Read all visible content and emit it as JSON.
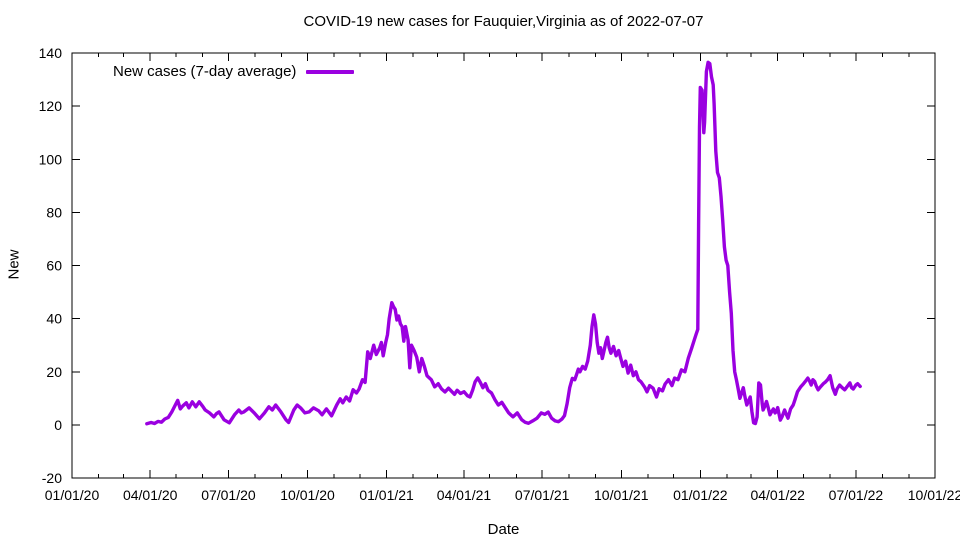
{
  "title": "COVID-19 new cases for Fauquier,Virginia as of 2022-07-07",
  "legend": {
    "label": "New cases (7-day average)"
  },
  "axes": {
    "x_label": "Date",
    "y_label": "New"
  },
  "chart_data": {
    "type": "line",
    "title": "COVID-19 new cases for Fauquier,Virginia as of 2022-07-07",
    "xlabel": "Date",
    "ylabel": "New",
    "grid": false,
    "legend_position": "top-left-inside",
    "line_color": "#9A00E0",
    "x_range": [
      "2020-01-01",
      "2022-10-01"
    ],
    "ylim": [
      -20,
      140
    ],
    "y_ticks": [
      -20,
      0,
      20,
      40,
      60,
      80,
      100,
      120,
      140
    ],
    "x_ticks": [
      [
        "2020-01-01",
        "01/01/20"
      ],
      [
        "2020-04-01",
        "04/01/20"
      ],
      [
        "2020-07-01",
        "07/01/20"
      ],
      [
        "2020-10-01",
        "10/01/20"
      ],
      [
        "2021-01-01",
        "01/01/21"
      ],
      [
        "2021-04-01",
        "04/01/21"
      ],
      [
        "2021-07-01",
        "07/01/21"
      ],
      [
        "2021-10-01",
        "10/01/21"
      ],
      [
        "2022-01-01",
        "01/01/22"
      ],
      [
        "2022-04-01",
        "04/01/22"
      ],
      [
        "2022-07-01",
        "07/01/22"
      ],
      [
        "2022-10-01",
        "10/01/22"
      ]
    ],
    "minor_x_ticks": "monthly",
    "series": [
      {
        "name": "New cases (7-day average)",
        "points": [
          [
            "2020-03-28",
            0.4
          ],
          [
            "2020-04-02",
            0.9
          ],
          [
            "2020-04-06",
            0.5
          ],
          [
            "2020-04-10",
            1.3
          ],
          [
            "2020-04-14",
            1.0
          ],
          [
            "2020-04-18",
            2.2
          ],
          [
            "2020-04-22",
            2.8
          ],
          [
            "2020-04-26",
            4.8
          ],
          [
            "2020-05-01",
            8.0
          ],
          [
            "2020-05-03",
            9.2
          ],
          [
            "2020-05-06",
            6.0
          ],
          [
            "2020-05-09",
            7.2
          ],
          [
            "2020-05-13",
            8.3
          ],
          [
            "2020-05-16",
            6.4
          ],
          [
            "2020-05-20",
            8.7
          ],
          [
            "2020-05-24",
            6.8
          ],
          [
            "2020-05-28",
            8.7
          ],
          [
            "2020-06-01",
            7.0
          ],
          [
            "2020-06-04",
            5.6
          ],
          [
            "2020-06-09",
            4.5
          ],
          [
            "2020-06-14",
            3.0
          ],
          [
            "2020-06-17",
            4.2
          ],
          [
            "2020-06-20",
            4.9
          ],
          [
            "2020-06-26",
            1.9
          ],
          [
            "2020-07-02",
            0.8
          ],
          [
            "2020-07-08",
            3.8
          ],
          [
            "2020-07-13",
            5.6
          ],
          [
            "2020-07-16",
            4.5
          ],
          [
            "2020-07-19",
            4.9
          ],
          [
            "2020-07-25",
            6.4
          ],
          [
            "2020-07-31",
            4.5
          ],
          [
            "2020-08-06",
            2.3
          ],
          [
            "2020-08-12",
            4.5
          ],
          [
            "2020-08-17",
            6.8
          ],
          [
            "2020-08-21",
            5.6
          ],
          [
            "2020-08-25",
            7.5
          ],
          [
            "2020-08-31",
            4.9
          ],
          [
            "2020-09-06",
            1.9
          ],
          [
            "2020-09-09",
            0.9
          ],
          [
            "2020-09-15",
            5.6
          ],
          [
            "2020-09-19",
            7.5
          ],
          [
            "2020-09-23",
            6.4
          ],
          [
            "2020-09-28",
            4.5
          ],
          [
            "2020-10-03",
            4.9
          ],
          [
            "2020-10-08",
            6.4
          ],
          [
            "2020-10-14",
            5.3
          ],
          [
            "2020-10-18",
            3.8
          ],
          [
            "2020-10-23",
            6.0
          ],
          [
            "2020-10-29",
            3.4
          ],
          [
            "2020-11-04",
            7.5
          ],
          [
            "2020-11-08",
            9.8
          ],
          [
            "2020-11-11",
            8.3
          ],
          [
            "2020-11-15",
            10.5
          ],
          [
            "2020-11-19",
            9.0
          ],
          [
            "2020-11-23",
            13.2
          ],
          [
            "2020-11-27",
            12.0
          ],
          [
            "2020-11-30",
            13.5
          ],
          [
            "2020-12-04",
            17.0
          ],
          [
            "2020-12-07",
            16.0
          ],
          [
            "2020-12-10",
            27.5
          ],
          [
            "2020-12-13",
            25.0
          ],
          [
            "2020-12-17",
            30.0
          ],
          [
            "2020-12-20",
            26.5
          ],
          [
            "2020-12-24",
            29.0
          ],
          [
            "2020-12-26",
            31.0
          ],
          [
            "2020-12-28",
            26.0
          ],
          [
            "2020-12-31",
            31.0
          ],
          [
            "2021-01-02",
            34.0
          ],
          [
            "2021-01-04",
            40.0
          ],
          [
            "2021-01-07",
            46.0
          ],
          [
            "2021-01-09",
            44.5
          ],
          [
            "2021-01-11",
            43.5
          ],
          [
            "2021-01-13",
            39.5
          ],
          [
            "2021-01-15",
            41.0
          ],
          [
            "2021-01-17",
            38.0
          ],
          [
            "2021-01-19",
            37.0
          ],
          [
            "2021-01-21",
            31.5
          ],
          [
            "2021-01-23",
            37.0
          ],
          [
            "2021-01-26",
            32.0
          ],
          [
            "2021-01-28",
            21.5
          ],
          [
            "2021-01-30",
            30.0
          ],
          [
            "2021-02-02",
            28.0
          ],
          [
            "2021-02-05",
            25.5
          ],
          [
            "2021-02-08",
            20.0
          ],
          [
            "2021-02-11",
            25.0
          ],
          [
            "2021-02-14",
            22.0
          ],
          [
            "2021-02-17",
            18.5
          ],
          [
            "2021-02-22",
            17.0
          ],
          [
            "2021-02-26",
            14.3
          ],
          [
            "2021-03-02",
            15.5
          ],
          [
            "2021-03-06",
            13.5
          ],
          [
            "2021-03-10",
            12.4
          ],
          [
            "2021-03-14",
            13.8
          ],
          [
            "2021-03-18",
            12.5
          ],
          [
            "2021-03-21",
            11.5
          ],
          [
            "2021-03-24",
            13.0
          ],
          [
            "2021-03-28",
            11.8
          ],
          [
            "2021-04-01",
            12.5
          ],
          [
            "2021-04-05",
            11.0
          ],
          [
            "2021-04-08",
            10.5
          ],
          [
            "2021-04-11",
            13.0
          ],
          [
            "2021-04-14",
            16.2
          ],
          [
            "2021-04-17",
            17.7
          ],
          [
            "2021-04-20",
            16.0
          ],
          [
            "2021-04-23",
            14.0
          ],
          [
            "2021-04-26",
            15.5
          ],
          [
            "2021-04-29",
            13.0
          ],
          [
            "2021-05-03",
            12.0
          ],
          [
            "2021-05-07",
            9.5
          ],
          [
            "2021-05-11",
            7.5
          ],
          [
            "2021-05-15",
            8.5
          ],
          [
            "2021-05-19",
            6.5
          ],
          [
            "2021-05-23",
            4.5
          ],
          [
            "2021-05-28",
            3.0
          ],
          [
            "2021-06-02",
            4.5
          ],
          [
            "2021-06-07",
            2.0
          ],
          [
            "2021-06-11",
            1.0
          ],
          [
            "2021-06-15",
            0.6
          ],
          [
            "2021-06-20",
            1.5
          ],
          [
            "2021-06-25",
            2.5
          ],
          [
            "2021-06-30",
            4.5
          ],
          [
            "2021-07-04",
            4.0
          ],
          [
            "2021-07-08",
            4.8
          ],
          [
            "2021-07-12",
            2.5
          ],
          [
            "2021-07-16",
            1.5
          ],
          [
            "2021-07-20",
            1.2
          ],
          [
            "2021-07-24",
            2.2
          ],
          [
            "2021-07-27",
            3.5
          ],
          [
            "2021-07-30",
            8.0
          ],
          [
            "2021-08-02",
            14.0
          ],
          [
            "2021-08-05",
            17.5
          ],
          [
            "2021-08-08",
            17.0
          ],
          [
            "2021-08-10",
            19.0
          ],
          [
            "2021-08-12",
            21.0
          ],
          [
            "2021-08-14",
            20.0
          ],
          [
            "2021-08-17",
            22.0
          ],
          [
            "2021-08-20",
            21.0
          ],
          [
            "2021-08-23",
            24.0
          ],
          [
            "2021-08-26",
            30.0
          ],
          [
            "2021-08-28",
            37.0
          ],
          [
            "2021-08-30",
            41.4
          ],
          [
            "2021-09-01",
            38.0
          ],
          [
            "2021-09-03",
            31.0
          ],
          [
            "2021-09-05",
            27.0
          ],
          [
            "2021-09-07",
            29.0
          ],
          [
            "2021-09-09",
            25.0
          ],
          [
            "2021-09-11",
            28.0
          ],
          [
            "2021-09-13",
            31.0
          ],
          [
            "2021-09-15",
            33.0
          ],
          [
            "2021-09-17",
            29.0
          ],
          [
            "2021-09-19",
            27.0
          ],
          [
            "2021-09-22",
            29.5
          ],
          [
            "2021-09-25",
            26.0
          ],
          [
            "2021-09-28",
            28.0
          ],
          [
            "2021-09-30",
            25.5
          ],
          [
            "2021-10-03",
            22.0
          ],
          [
            "2021-10-06",
            24.0
          ],
          [
            "2021-10-09",
            19.5
          ],
          [
            "2021-10-12",
            22.5
          ],
          [
            "2021-10-15",
            18.5
          ],
          [
            "2021-10-18",
            20.0
          ],
          [
            "2021-10-21",
            17.0
          ],
          [
            "2021-10-24",
            16.2
          ],
          [
            "2021-10-28",
            14.3
          ],
          [
            "2021-10-31",
            12.4
          ],
          [
            "2021-11-03",
            14.8
          ],
          [
            "2021-11-07",
            13.8
          ],
          [
            "2021-11-11",
            10.5
          ],
          [
            "2021-11-14",
            13.6
          ],
          [
            "2021-11-18",
            12.8
          ],
          [
            "2021-11-21",
            15.4
          ],
          [
            "2021-11-25",
            17.0
          ],
          [
            "2021-11-29",
            14.8
          ],
          [
            "2021-12-02",
            17.6
          ],
          [
            "2021-12-06",
            17.0
          ],
          [
            "2021-12-10",
            20.7
          ],
          [
            "2021-12-14",
            20.0
          ],
          [
            "2021-12-18",
            25.1
          ],
          [
            "2021-12-22",
            28.9
          ],
          [
            "2021-12-25",
            32.0
          ],
          [
            "2021-12-27",
            34.0
          ],
          [
            "2021-12-29",
            36.0
          ],
          [
            "2021-12-30",
            75.0
          ],
          [
            "2021-12-31",
            112.0
          ],
          [
            "2022-01-01",
            127.0
          ],
          [
            "2022-01-03",
            126.0
          ],
          [
            "2022-01-05",
            110.0
          ],
          [
            "2022-01-06",
            114.0
          ],
          [
            "2022-01-08",
            133.0
          ],
          [
            "2022-01-10",
            136.5
          ],
          [
            "2022-01-12",
            136.0
          ],
          [
            "2022-01-14",
            131.0
          ],
          [
            "2022-01-16",
            128.0
          ],
          [
            "2022-01-17",
            121.0
          ],
          [
            "2022-01-19",
            103.0
          ],
          [
            "2022-01-21",
            95.0
          ],
          [
            "2022-01-23",
            93.0
          ],
          [
            "2022-01-25",
            86.0
          ],
          [
            "2022-01-27",
            77.0
          ],
          [
            "2022-01-29",
            67.0
          ],
          [
            "2022-01-31",
            62.0
          ],
          [
            "2022-02-02",
            60.0
          ],
          [
            "2022-02-04",
            50.0
          ],
          [
            "2022-02-06",
            42.0
          ],
          [
            "2022-02-08",
            28.0
          ],
          [
            "2022-02-10",
            20.0
          ],
          [
            "2022-02-12",
            17.0
          ],
          [
            "2022-02-14",
            13.5
          ],
          [
            "2022-02-16",
            10.0
          ],
          [
            "2022-02-18",
            12.0
          ],
          [
            "2022-02-20",
            14.0
          ],
          [
            "2022-02-22",
            10.5
          ],
          [
            "2022-02-24",
            7.5
          ],
          [
            "2022-02-26",
            9.0
          ],
          [
            "2022-02-28",
            10.5
          ],
          [
            "2022-03-02",
            5.0
          ],
          [
            "2022-03-04",
            0.8
          ],
          [
            "2022-03-06",
            0.5
          ],
          [
            "2022-03-08",
            3.0
          ],
          [
            "2022-03-10",
            15.8
          ],
          [
            "2022-03-12",
            15.0
          ],
          [
            "2022-03-14",
            8.0
          ],
          [
            "2022-03-15",
            5.6
          ],
          [
            "2022-03-17",
            7.0
          ],
          [
            "2022-03-19",
            8.8
          ],
          [
            "2022-03-21",
            6.5
          ],
          [
            "2022-03-23",
            3.8
          ],
          [
            "2022-03-25",
            5.0
          ],
          [
            "2022-03-27",
            6.0
          ],
          [
            "2022-03-29",
            4.5
          ],
          [
            "2022-03-31",
            5.5
          ],
          [
            "2022-04-01",
            6.5
          ],
          [
            "2022-04-04",
            1.8
          ],
          [
            "2022-04-06",
            3.0
          ],
          [
            "2022-04-09",
            5.6
          ],
          [
            "2022-04-11",
            4.0
          ],
          [
            "2022-04-13",
            2.5
          ],
          [
            "2022-04-16",
            6.0
          ],
          [
            "2022-04-19",
            7.5
          ],
          [
            "2022-04-21",
            9.4
          ],
          [
            "2022-04-24",
            12.5
          ],
          [
            "2022-04-28",
            14.4
          ],
          [
            "2022-05-01",
            15.5
          ],
          [
            "2022-05-03",
            16.3
          ],
          [
            "2022-05-06",
            17.6
          ],
          [
            "2022-05-08",
            16.5
          ],
          [
            "2022-05-10",
            15.0
          ],
          [
            "2022-05-12",
            17.0
          ],
          [
            "2022-05-14",
            16.3
          ],
          [
            "2022-05-16",
            14.5
          ],
          [
            "2022-05-18",
            13.2
          ],
          [
            "2022-05-21",
            14.4
          ],
          [
            "2022-05-24",
            15.5
          ],
          [
            "2022-05-26",
            16.0
          ],
          [
            "2022-05-29",
            17.0
          ],
          [
            "2022-06-01",
            18.5
          ],
          [
            "2022-06-04",
            14.0
          ],
          [
            "2022-06-07",
            11.5
          ],
          [
            "2022-06-09",
            13.5
          ],
          [
            "2022-06-12",
            15.0
          ],
          [
            "2022-06-15",
            14.0
          ],
          [
            "2022-06-18",
            13.2
          ],
          [
            "2022-06-21",
            14.5
          ],
          [
            "2022-06-24",
            15.8
          ],
          [
            "2022-06-26",
            14.0
          ],
          [
            "2022-06-28",
            13.5
          ],
          [
            "2022-07-01",
            15.0
          ],
          [
            "2022-07-03",
            15.5
          ],
          [
            "2022-07-06",
            14.5
          ]
        ]
      }
    ]
  }
}
